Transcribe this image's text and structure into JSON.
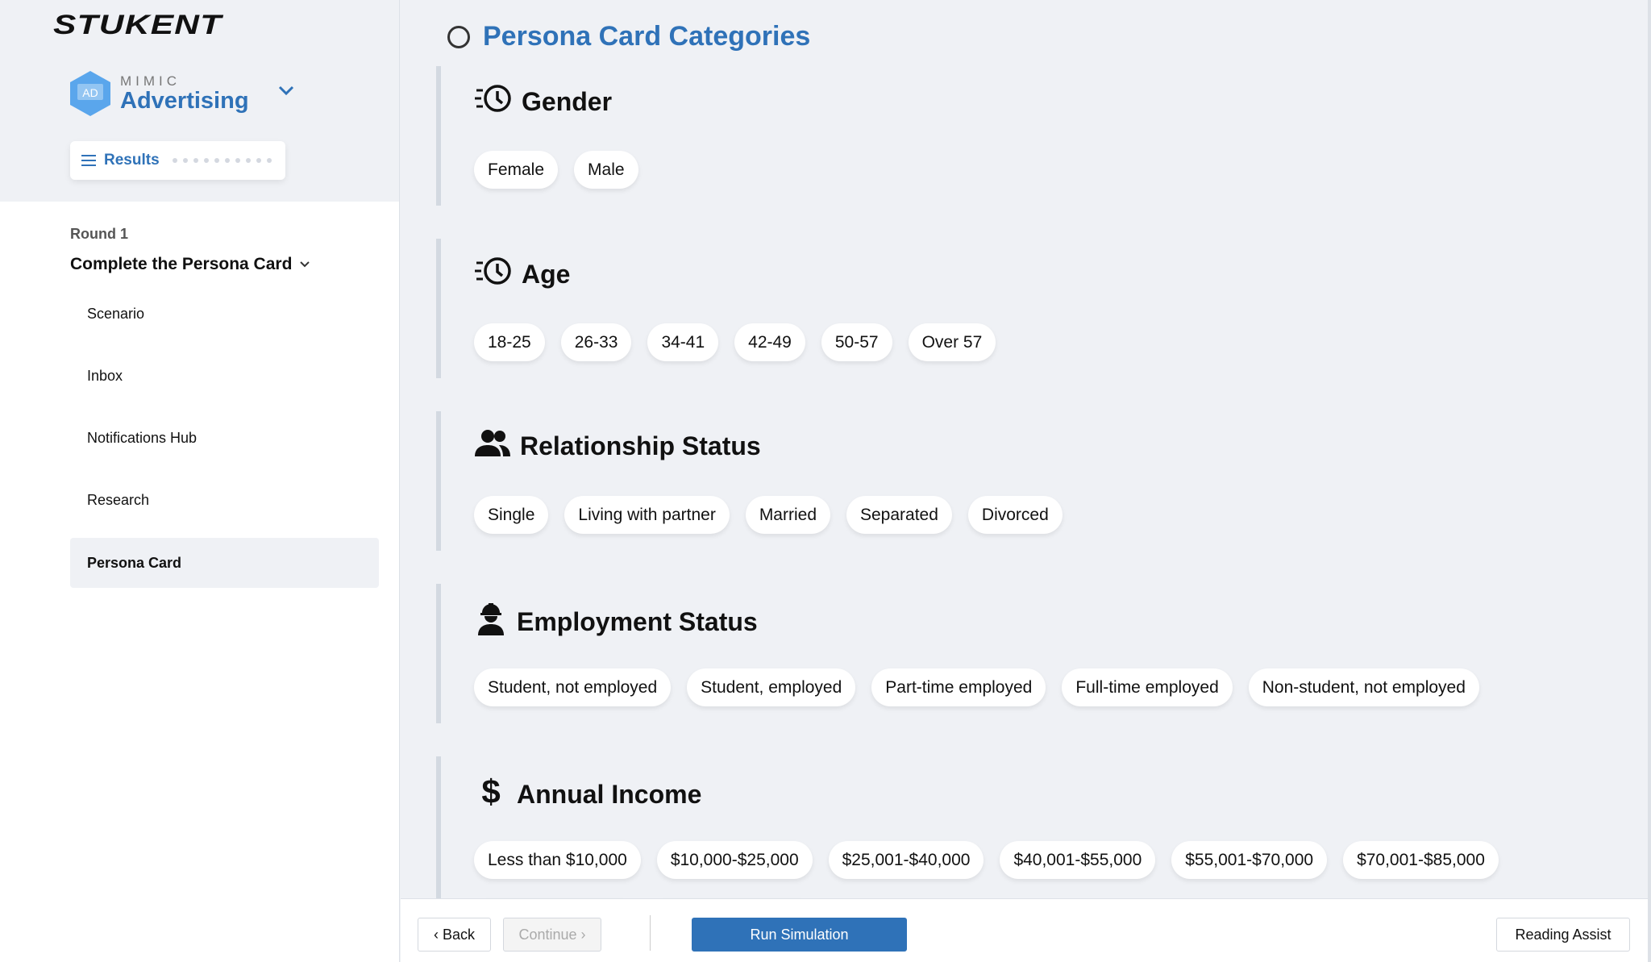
{
  "brand": {
    "logo": "STUKENT",
    "product_small": "MIMIC",
    "product_name": "Advertising",
    "product_icon_text": "AD"
  },
  "results": {
    "label": "Results",
    "progress_dots": 10
  },
  "round": {
    "label": "Round 1",
    "title": "Complete the Persona Card"
  },
  "nav": [
    {
      "label": "Scenario"
    },
    {
      "label": "Inbox"
    },
    {
      "label": "Notifications Hub"
    },
    {
      "label": "Research"
    },
    {
      "label": "Persona Card",
      "active": true
    }
  ],
  "page": {
    "title": "Persona Card Categories"
  },
  "sections": [
    {
      "title": "Gender",
      "icon": "clock-speed-icon",
      "options": [
        "Female",
        "Male"
      ]
    },
    {
      "title": "Age",
      "icon": "clock-speed-icon",
      "options": [
        "18-25",
        "26-33",
        "34-41",
        "42-49",
        "50-57",
        "Over 57"
      ]
    },
    {
      "title": "Relationship Status",
      "icon": "people-icon",
      "options": [
        "Single",
        "Living with partner",
        "Married",
        "Separated",
        "Divorced"
      ]
    },
    {
      "title": "Employment Status",
      "icon": "worker-icon",
      "options": [
        "Student, not employed",
        "Student, employed",
        "Part-time employed",
        "Full-time employed",
        "Non-student, not employed"
      ]
    },
    {
      "title": "Annual Income",
      "icon": "dollar-icon",
      "options": [
        "Less than $10,000",
        "$10,000-$25,000",
        "$25,001-$40,000",
        "$40,001-$55,000",
        "$55,001-$70,000",
        "$70,001-$85,000"
      ]
    }
  ],
  "footer": {
    "back": "‹ Back",
    "continue": "Continue ›",
    "run": "Run Simulation",
    "reading_assist": "Reading Assist"
  },
  "colors": {
    "accent": "#2f72b8",
    "background": "#eff1f5"
  }
}
